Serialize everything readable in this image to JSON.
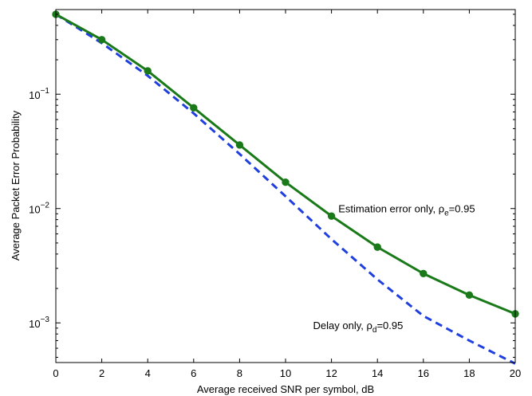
{
  "chart_data": {
    "type": "line",
    "title": "",
    "xlabel": "Average received SNR per symbol, dB",
    "ylabel": "Average Packet Error Probability",
    "xlim": [
      0,
      20
    ],
    "ylim": [
      0.00045,
      0.55
    ],
    "yscale": "log",
    "grid": false,
    "x_ticks": [
      0,
      2,
      4,
      6,
      8,
      10,
      12,
      14,
      16,
      18,
      20
    ],
    "x_tick_labels": [
      "0",
      "2",
      "4",
      "6",
      "8",
      "10",
      "12",
      "14",
      "16",
      "18",
      "20"
    ],
    "y_tick_labels": [
      {
        "value": 0.001,
        "base": "10",
        "exp": "−3"
      },
      {
        "value": 0.01,
        "base": "10",
        "exp": "−2"
      },
      {
        "value": 0.1,
        "base": "10",
        "exp": "−1"
      }
    ],
    "series": [
      {
        "color": "#1a7a1a",
        "style": "solid-markers",
        "x": [
          0,
          2,
          4,
          6,
          8,
          10,
          12,
          14,
          16,
          18,
          20
        ],
        "y": [
          0.5,
          0.3,
          0.16,
          0.076,
          0.036,
          0.017,
          0.0086,
          0.0046,
          0.0027,
          0.00175,
          0.0012
        ]
      },
      {
        "color": "#1f3fdf",
        "style": "dashed",
        "x": [
          0,
          2,
          4,
          6,
          8,
          10,
          12,
          14,
          16,
          18,
          20
        ],
        "y": [
          0.5,
          0.28,
          0.145,
          0.068,
          0.03,
          0.0128,
          0.0054,
          0.0024,
          0.00115,
          0.0007,
          0.00044
        ]
      }
    ],
    "annotations": [
      {
        "text": "Estimation error only, ρ",
        "sub": "e",
        "suffix": "=0.95",
        "x": 12.3,
        "y": 0.0093
      },
      {
        "text": "Delay only, ρ",
        "sub": "d",
        "suffix": "=0.95",
        "x": 11.2,
        "y": 0.00088
      }
    ]
  }
}
